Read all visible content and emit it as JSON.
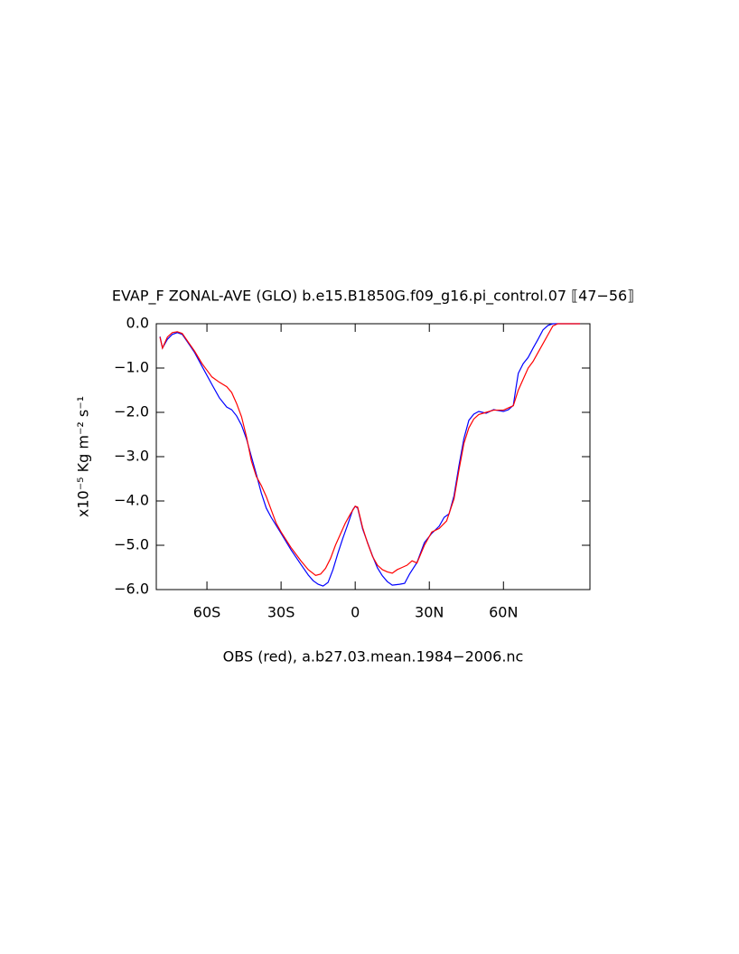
{
  "chart_data": {
    "type": "line",
    "title": "EVAP_F ZONAL-AVE (GLO) b.e15.B1850G.f09_g16.pi_control.07 ⟦47−56⟧",
    "y_label": "x10⁻⁵ Kg m⁻² s⁻¹",
    "x_label": "OBS (red), a.b27.03.mean.1984−2006.nc",
    "xlim": [
      -80.5,
      95
    ],
    "ylim": [
      -6,
      0
    ],
    "xticks": [
      {
        "value": -60,
        "label": "60S"
      },
      {
        "value": -30,
        "label": "30S"
      },
      0,
      {
        "value": 30,
        "label": "30N"
      },
      {
        "value": 60,
        "label": "60N"
      }
    ],
    "yticks": [
      {
        "value": 0,
        "label": "0.0"
      },
      {
        "value": -1,
        "label": "−1.0"
      },
      {
        "value": -2,
        "label": "−2.0"
      },
      {
        "value": -3,
        "label": "−3.0"
      },
      {
        "value": -4,
        "label": "−4.0"
      },
      {
        "value": -5,
        "label": "−5.0"
      },
      {
        "value": -6,
        "label": "−6.0"
      }
    ],
    "series": [
      {
        "color": "#0000ff",
        "x": [
          -79,
          -78,
          -76,
          -74,
          -72,
          -70,
          -68,
          -65,
          -62,
          -58,
          -55,
          -52,
          -50,
          -48,
          -46,
          -44,
          -42,
          -40,
          -38,
          -36,
          -34,
          -30,
          -26,
          -22,
          -19,
          -17,
          -15,
          -13,
          -11,
          -9,
          -7,
          -5,
          -3,
          -1,
          0,
          1,
          3,
          5,
          7,
          9,
          11,
          13,
          15,
          18,
          20,
          22,
          25,
          28,
          31,
          34,
          36,
          38,
          40,
          42,
          44,
          46,
          48,
          50,
          53,
          56,
          60,
          62,
          64,
          65,
          66,
          68,
          70,
          72,
          74,
          76,
          78,
          80,
          84,
          91
        ],
        "values": [
          -0.29,
          -0.55,
          -0.35,
          -0.24,
          -0.2,
          -0.24,
          -0.4,
          -0.65,
          -0.96,
          -1.37,
          -1.67,
          -1.88,
          -1.94,
          -2.08,
          -2.29,
          -2.6,
          -3.0,
          -3.4,
          -3.82,
          -4.16,
          -4.37,
          -4.73,
          -5.1,
          -5.43,
          -5.67,
          -5.8,
          -5.88,
          -5.92,
          -5.84,
          -5.55,
          -5.18,
          -4.84,
          -4.53,
          -4.2,
          -4.12,
          -4.16,
          -4.63,
          -4.94,
          -5.24,
          -5.51,
          -5.69,
          -5.82,
          -5.9,
          -5.88,
          -5.86,
          -5.65,
          -5.39,
          -4.94,
          -4.73,
          -4.57,
          -4.37,
          -4.29,
          -3.88,
          -3.2,
          -2.59,
          -2.18,
          -2.04,
          -1.98,
          -2.02,
          -1.94,
          -1.98,
          -1.94,
          -1.84,
          -1.47,
          -1.12,
          -0.9,
          -0.76,
          -0.55,
          -0.35,
          -0.14,
          -0.04,
          0,
          0,
          0
        ]
      },
      {
        "color": "#ff0000",
        "x": [
          -79,
          -78,
          -76,
          -74,
          -72,
          -70,
          -68,
          -65,
          -62,
          -60,
          -58,
          -55,
          -52,
          -50,
          -48,
          -46,
          -44,
          -42,
          -40,
          -38,
          -36,
          -34,
          -32,
          -30,
          -26,
          -22,
          -19,
          -16,
          -14,
          -12,
          -10,
          -8,
          -6,
          -4,
          -2,
          0,
          1,
          3,
          5,
          7,
          9,
          11,
          13,
          15,
          17,
          19,
          21,
          23,
          25,
          28,
          31,
          34,
          37,
          40,
          42,
          44,
          46,
          48,
          50,
          53,
          56,
          60,
          62,
          64,
          66,
          68,
          70,
          72,
          74,
          76,
          78,
          80,
          82,
          91
        ],
        "values": [
          -0.3,
          -0.55,
          -0.3,
          -0.2,
          -0.18,
          -0.22,
          -0.38,
          -0.62,
          -0.9,
          -1.05,
          -1.2,
          -1.32,
          -1.42,
          -1.55,
          -1.8,
          -2.1,
          -2.55,
          -3.1,
          -3.45,
          -3.65,
          -3.9,
          -4.2,
          -4.5,
          -4.7,
          -5.05,
          -5.35,
          -5.55,
          -5.68,
          -5.65,
          -5.52,
          -5.3,
          -5.0,
          -4.75,
          -4.5,
          -4.3,
          -4.12,
          -4.14,
          -4.6,
          -4.95,
          -5.25,
          -5.45,
          -5.55,
          -5.6,
          -5.63,
          -5.55,
          -5.5,
          -5.45,
          -5.35,
          -5.4,
          -5.0,
          -4.7,
          -4.62,
          -4.45,
          -3.95,
          -3.3,
          -2.7,
          -2.35,
          -2.15,
          -2.05,
          -2.0,
          -1.95,
          -1.95,
          -1.9,
          -1.85,
          -1.5,
          -1.25,
          -1.0,
          -0.85,
          -0.65,
          -0.45,
          -0.25,
          -0.05,
          0,
          0
        ]
      }
    ]
  }
}
